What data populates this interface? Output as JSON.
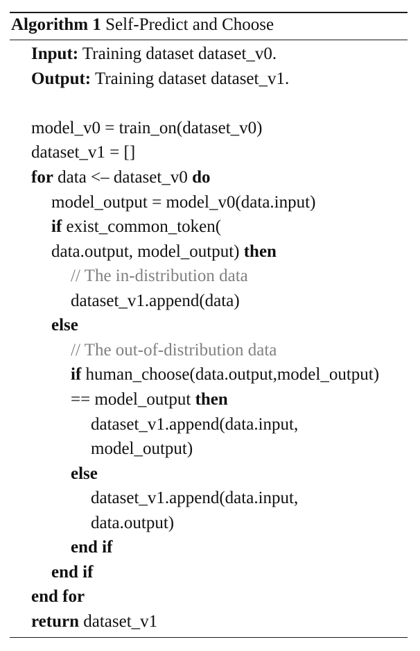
{
  "algorithm": {
    "label": "Algorithm 1",
    "title": "Self-Predict and Choose"
  },
  "io": {
    "input_kw": "Input:",
    "input_text": "Training dataset dataset_v0.",
    "output_kw": "Output:",
    "output_text": "Training dataset dataset_v1."
  },
  "code": {
    "l1": "model_v0 = train_on(dataset_v0)",
    "l2": "dataset_v1 = []",
    "for_kw": "for",
    "for_text": "data <– dataset_v0",
    "do_kw": "do",
    "l4": "model_output = model_v0(data.input)",
    "if1_kw": "if",
    "if1_text": "exist_common_token(",
    "if1_cont": "data.output, model_output)",
    "then1_kw": "then",
    "comment1": "// The in-distribution data",
    "append1": "dataset_v1.append(data)",
    "else1_kw": "else",
    "comment2": "// The out-of-distribution data",
    "if2_kw": "if",
    "if2_text": "human_choose(data.output,model_output)",
    "if2_cont": "== model_output",
    "then2_kw": "then",
    "append2a": "dataset_v1.append(data.input,",
    "append2b": "model_output)",
    "else2_kw": "else",
    "append3a": "dataset_v1.append(data.input,",
    "append3b": "data.output)",
    "endif2_kw": "end if",
    "endif1_kw": "end if",
    "endfor_kw": "end for",
    "return_kw": "return",
    "return_text": "dataset_v1"
  }
}
